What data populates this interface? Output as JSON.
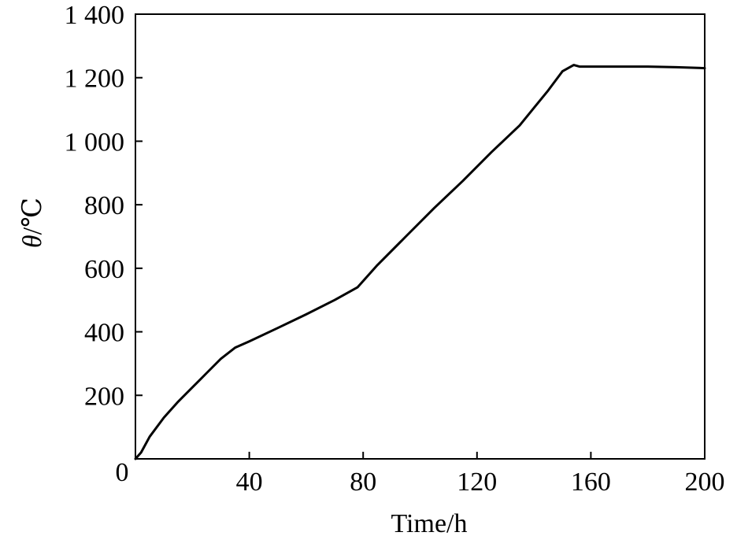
{
  "chart_data": {
    "type": "line",
    "xlabel": "Time/h",
    "ylabel_symbol": "θ",
    "ylabel_unit": "/℃",
    "xlim": [
      0,
      200
    ],
    "ylim": [
      0,
      1400
    ],
    "x_ticks": [
      40,
      80,
      120,
      160,
      200
    ],
    "x_tick_labels": [
      "40",
      "80",
      "120",
      "160",
      "200"
    ],
    "y_ticks": [
      200,
      400,
      600,
      800,
      1000,
      1200,
      1400
    ],
    "y_tick_labels": [
      "200",
      "400",
      "600",
      "800",
      "1 000",
      "1 200",
      "1 400"
    ],
    "origin_label": "0",
    "grid": false,
    "series": [
      {
        "color": "#000000",
        "x": [
          0,
          2,
          5,
          10,
          15,
          20,
          25,
          30,
          35,
          40,
          50,
          60,
          70,
          78,
          85,
          95,
          105,
          115,
          125,
          135,
          140,
          145,
          150,
          154,
          156,
          160,
          170,
          180,
          190,
          200
        ],
        "y": [
          0,
          20,
          70,
          130,
          180,
          225,
          270,
          315,
          350,
          370,
          412,
          455,
          500,
          540,
          610,
          700,
          790,
          875,
          965,
          1050,
          1105,
          1160,
          1220,
          1240,
          1235,
          1235,
          1235,
          1235,
          1233,
          1230
        ]
      }
    ]
  }
}
